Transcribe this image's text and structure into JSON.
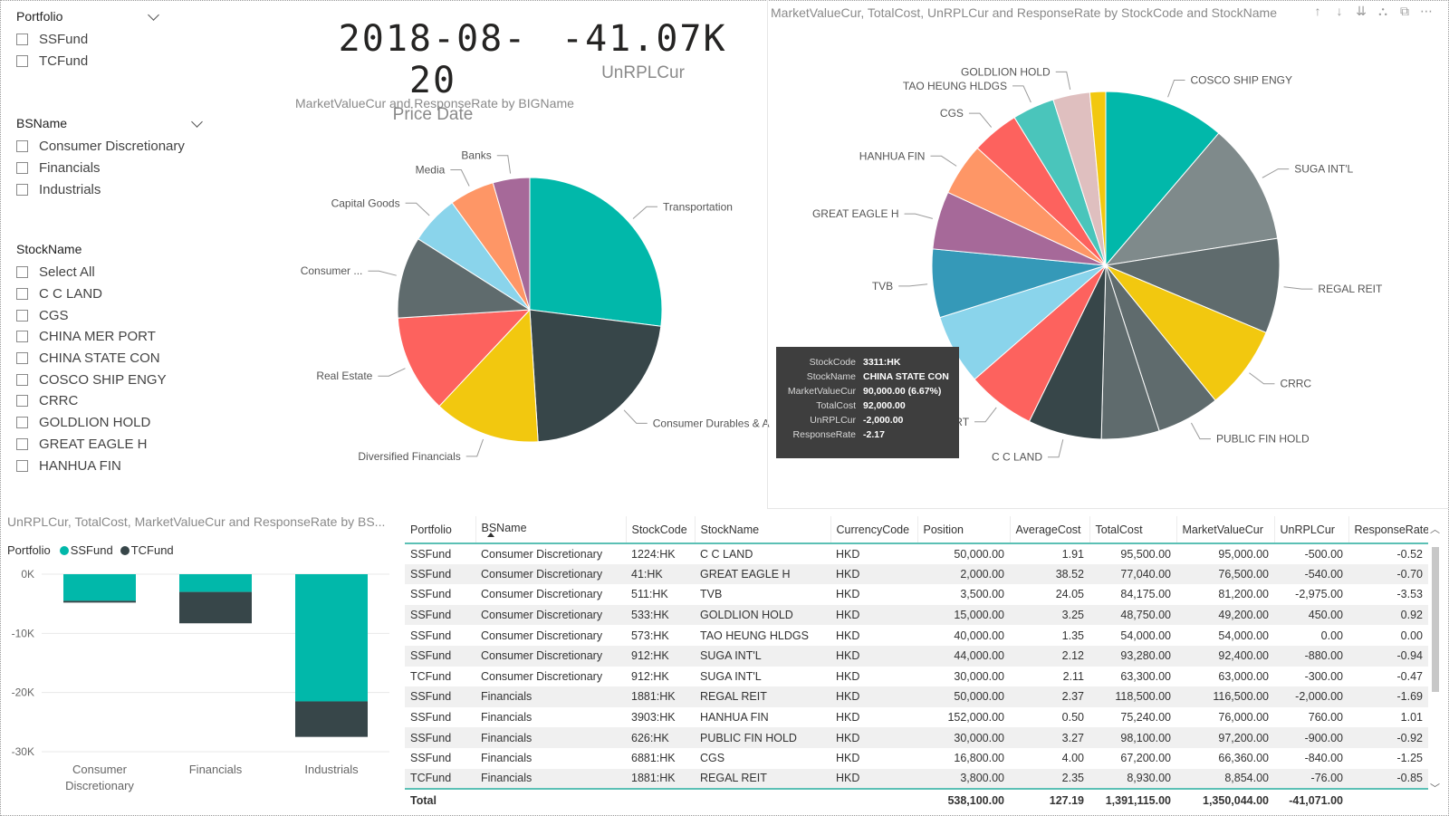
{
  "slicers": {
    "portfolio": {
      "title": "Portfolio",
      "items": [
        "SSFund",
        "TCFund"
      ]
    },
    "bsname": {
      "title": "BSName",
      "items": [
        "Consumer Discretionary",
        "Financials",
        "Industrials"
      ]
    },
    "stockname": {
      "title": "StockName",
      "items": [
        "Select All",
        "C C LAND",
        "CGS",
        "CHINA MER PORT",
        "CHINA STATE CON",
        "COSCO SHIP ENGY",
        "CRRC",
        "GOLDLION HOLD",
        "GREAT EAGLE H",
        "HANHUA FIN"
      ]
    }
  },
  "kpis": {
    "price_date": {
      "value": "2018-08-20",
      "label": "Price Date"
    },
    "unrpl": {
      "value": "-41.07K",
      "label": "UnRPLCur"
    }
  },
  "colors": {
    "teal": "#01B8AA",
    "dark": "#374649",
    "red": "#FD625E",
    "yellow": "#F2C80F",
    "gray": "#5F6B6D",
    "lightblue": "#8AD4EB",
    "orange": "#FE9666",
    "purple": "#A66999",
    "blue": "#3599B8",
    "pink": "#DFBFBF",
    "cyan": "#4AC5BB",
    "slate": "#7F8A8B"
  },
  "pie_bigname": {
    "title": "MarketValueCur and ResponseRate by BIGName",
    "chart_data": {
      "type": "pie",
      "labels": [
        "Transportation",
        "Consumer Durables & Appa...",
        "Diversified Financials",
        "Real Estate",
        "Consumer ...",
        "Capital Goods",
        "Media",
        "Banks"
      ],
      "values": [
        27,
        22,
        13,
        12,
        10,
        6,
        5.5,
        4.5
      ],
      "colors": [
        "#01B8AA",
        "#374649",
        "#F2C80F",
        "#FD625E",
        "#5F6B6D",
        "#8AD4EB",
        "#FE9666",
        "#A66999"
      ]
    }
  },
  "pie_stock": {
    "title": "MarketValueCur, TotalCost, UnRPLCur and ResponseRate by StockCode and StockName",
    "chart_data": {
      "type": "pie",
      "labels": [
        "COSCO SHIP ENGY",
        "SUGA INT'L",
        "REGAL REIT",
        "CRRC",
        "PUBLIC FIN HOLD",
        "",
        "C C LAND",
        "CHINA MER PORT",
        "CHINA STATE CON",
        "TVB",
        "GREAT EAGLE H",
        "HANHUA FIN",
        "CGS",
        "TAO HEUNG HLDGS",
        "GOLDLION HOLD",
        ""
      ],
      "values": [
        11.5,
        11.5,
        9,
        8,
        6,
        5.5,
        7,
        6.5,
        6.67,
        6.5,
        5.5,
        5,
        4.5,
        4,
        3.5,
        1.5
      ],
      "colors": [
        "#01B8AA",
        "#7F8A8B",
        "#5F6B6D",
        "#F2C80F",
        "#5F6B6D",
        "#5F6B6D",
        "#374649",
        "#FD625E",
        "#8AD4EB",
        "#3599B8",
        "#A66999",
        "#FE9666",
        "#FD625E",
        "#4AC5BB",
        "#DFBFBF",
        "#F2C80F"
      ]
    }
  },
  "tooltip": {
    "rows": [
      {
        "k": "StockCode",
        "v": "3311:HK"
      },
      {
        "k": "StockName",
        "v": "CHINA STATE CON"
      },
      {
        "k": "MarketValueCur",
        "v": "90,000.00 (6.67%)"
      },
      {
        "k": "TotalCost",
        "v": "92,000.00"
      },
      {
        "k": "UnRPLCur",
        "v": "-2,000.00"
      },
      {
        "k": "ResponseRate",
        "v": "-2.17"
      }
    ]
  },
  "bar_chart": {
    "title": "UnRPLCur, TotalCost, MarketValueCur and ResponseRate by BS...",
    "legend_title": "Portfolio",
    "chart_data": {
      "type": "bar",
      "categories": [
        "Consumer Discretionary",
        "Financials",
        "Industrials"
      ],
      "series": [
        {
          "name": "SSFund",
          "values": [
            -4.5,
            -3,
            -21.5
          ],
          "color": "#01B8AA"
        },
        {
          "name": "TCFund",
          "values": [
            -0.3,
            -5.3,
            -6
          ],
          "color": "#374649"
        }
      ],
      "ylim": [
        -30,
        0
      ],
      "yticks": [
        "0K",
        "-10K",
        "-20K",
        "-30K"
      ]
    }
  },
  "table": {
    "headers": [
      "Portfolio",
      "BSName",
      "StockCode",
      "StockName",
      "CurrencyCode",
      "Position",
      "AverageCost",
      "TotalCost",
      "MarketValueCur",
      "UnRPLCur",
      "ResponseRate"
    ],
    "rows": [
      [
        "SSFund",
        "Consumer Discretionary",
        "1224:HK",
        "C C LAND",
        "HKD",
        "50,000.00",
        "1.91",
        "95,500.00",
        "95,000.00",
        "-500.00",
        "-0.52"
      ],
      [
        "SSFund",
        "Consumer Discretionary",
        "41:HK",
        "GREAT EAGLE H",
        "HKD",
        "2,000.00",
        "38.52",
        "77,040.00",
        "76,500.00",
        "-540.00",
        "-0.70"
      ],
      [
        "SSFund",
        "Consumer Discretionary",
        "511:HK",
        "TVB",
        "HKD",
        "3,500.00",
        "24.05",
        "84,175.00",
        "81,200.00",
        "-2,975.00",
        "-3.53"
      ],
      [
        "SSFund",
        "Consumer Discretionary",
        "533:HK",
        "GOLDLION HOLD",
        "HKD",
        "15,000.00",
        "3.25",
        "48,750.00",
        "49,200.00",
        "450.00",
        "0.92"
      ],
      [
        "SSFund",
        "Consumer Discretionary",
        "573:HK",
        "TAO HEUNG HLDGS",
        "HKD",
        "40,000.00",
        "1.35",
        "54,000.00",
        "54,000.00",
        "0.00",
        "0.00"
      ],
      [
        "SSFund",
        "Consumer Discretionary",
        "912:HK",
        "SUGA INT'L",
        "HKD",
        "44,000.00",
        "2.12",
        "93,280.00",
        "92,400.00",
        "-880.00",
        "-0.94"
      ],
      [
        "TCFund",
        "Consumer Discretionary",
        "912:HK",
        "SUGA INT'L",
        "HKD",
        "30,000.00",
        "2.11",
        "63,300.00",
        "63,000.00",
        "-300.00",
        "-0.47"
      ],
      [
        "SSFund",
        "Financials",
        "1881:HK",
        "REGAL REIT",
        "HKD",
        "50,000.00",
        "2.37",
        "118,500.00",
        "116,500.00",
        "-2,000.00",
        "-1.69"
      ],
      [
        "SSFund",
        "Financials",
        "3903:HK",
        "HANHUA FIN",
        "HKD",
        "152,000.00",
        "0.50",
        "75,240.00",
        "76,000.00",
        "760.00",
        "1.01"
      ],
      [
        "SSFund",
        "Financials",
        "626:HK",
        "PUBLIC FIN HOLD",
        "HKD",
        "30,000.00",
        "3.27",
        "98,100.00",
        "97,200.00",
        "-900.00",
        "-0.92"
      ],
      [
        "SSFund",
        "Financials",
        "6881:HK",
        "CGS",
        "HKD",
        "16,800.00",
        "4.00",
        "67,200.00",
        "66,360.00",
        "-840.00",
        "-1.25"
      ],
      [
        "TCFund",
        "Financials",
        "1881:HK",
        "REGAL REIT",
        "HKD",
        "3,800.00",
        "2.35",
        "8,930.00",
        "8,854.00",
        "-76.00",
        "-0.85"
      ]
    ],
    "total": [
      "Total",
      "",
      "",
      "",
      "",
      "538,100.00",
      "127.19",
      "1,391,115.00",
      "1,350,044.00",
      "-41,071.00",
      ""
    ]
  }
}
